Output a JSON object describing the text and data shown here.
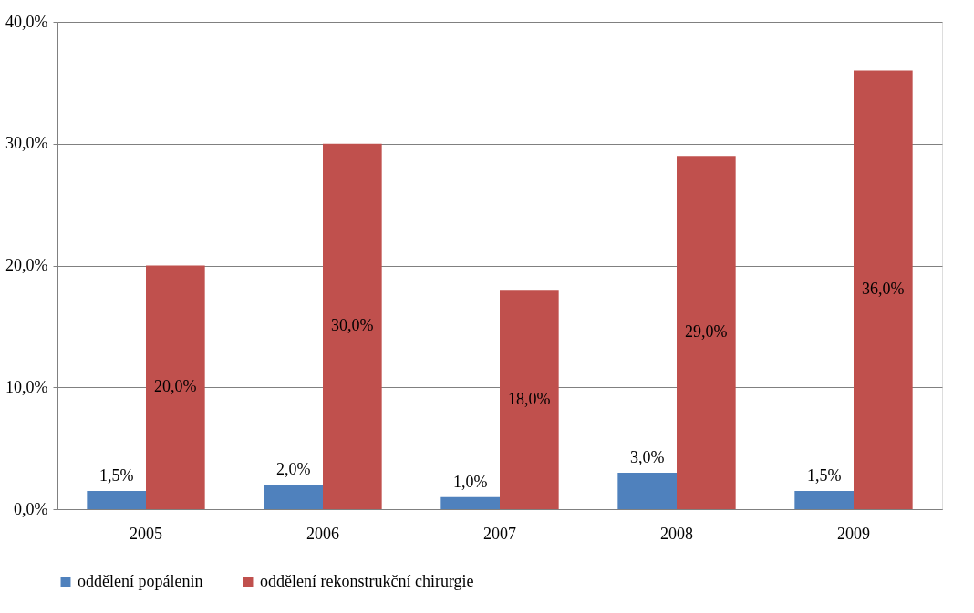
{
  "chart_data": {
    "type": "bar",
    "categories": [
      "2005",
      "2006",
      "2007",
      "2008",
      "2009"
    ],
    "series": [
      {
        "name": "oddělení popálenin",
        "color": "#4f81bd",
        "values": [
          1.5,
          2.0,
          1.0,
          3.0,
          1.5
        ],
        "value_labels": [
          "1,5%",
          "2,0%",
          "1,0%",
          "3,0%",
          "1,5%"
        ]
      },
      {
        "name": "oddělení rekonstrukční chirurgie",
        "color": "#c0504d",
        "values": [
          20.0,
          30.0,
          18.0,
          29.0,
          36.0
        ],
        "value_labels": [
          "20,0%",
          "30,0%",
          "18,0%",
          "29,0%",
          "36,0%"
        ]
      }
    ],
    "ylim": [
      0,
      40
    ],
    "yticks": [
      {
        "value": 0,
        "label": "0,0%"
      },
      {
        "value": 10,
        "label": "10,0%"
      },
      {
        "value": 20,
        "label": "20,0%"
      },
      {
        "value": 30,
        "label": "30,0%"
      },
      {
        "value": 40,
        "label": "40,0%"
      }
    ],
    "grid": "y",
    "legend": "bottom"
  }
}
